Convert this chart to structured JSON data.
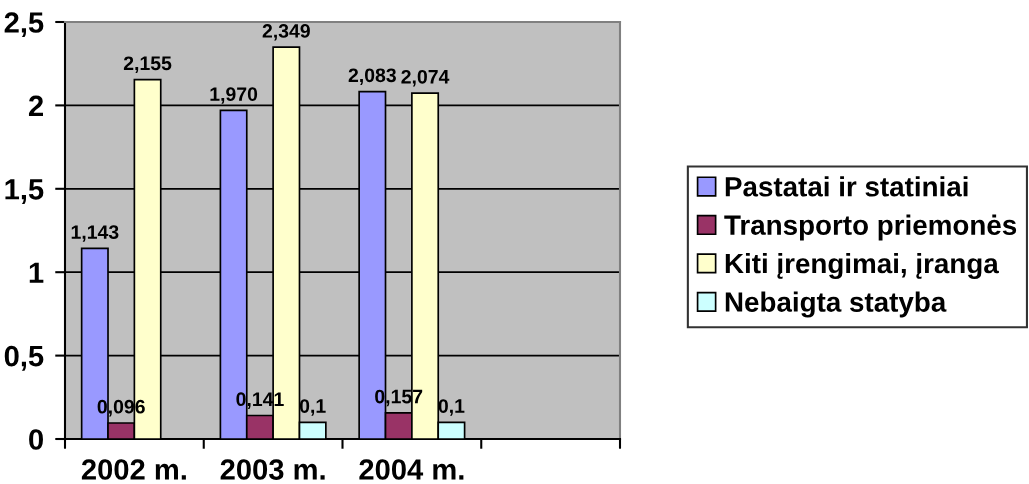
{
  "chart_data": {
    "type": "bar",
    "categories": [
      "2002 m.",
      "2003 m.",
      "2004 m.",
      null
    ],
    "series": [
      {
        "name": "Pastatai ir statiniai",
        "color": "#9999ff",
        "values": [
          1.143,
          1.97,
          2.083,
          null
        ],
        "value_labels": [
          "1,143",
          "1,970",
          "2,083",
          null
        ]
      },
      {
        "name": "Transporto priemonės",
        "color": "#993366",
        "values": [
          0.096,
          0.141,
          0.157,
          null
        ],
        "value_labels": [
          "0,096",
          "0,141",
          "0,157",
          null
        ]
      },
      {
        "name": "Kiti įrengimai, įranga",
        "color": "#ffffcc",
        "values": [
          2.155,
          2.349,
          2.074,
          null
        ],
        "value_labels": [
          "2,155",
          "2,349",
          "2,074",
          null
        ]
      },
      {
        "name": "Nebaigta statyba",
        "color": "#ccffff",
        "values": [
          null,
          0.1,
          0.1,
          null
        ],
        "value_labels": [
          null,
          "0,1",
          "0,1",
          null
        ]
      }
    ],
    "ylim": [
      0,
      2.5
    ],
    "yticks": [
      0,
      {
        "value": 0.5,
        "label": "0,5"
      },
      1,
      {
        "value": 1.5,
        "label": "1,5"
      },
      2,
      {
        "value": 2.5,
        "label": "2,5"
      }
    ],
    "grid": "y",
    "legend": "right"
  }
}
